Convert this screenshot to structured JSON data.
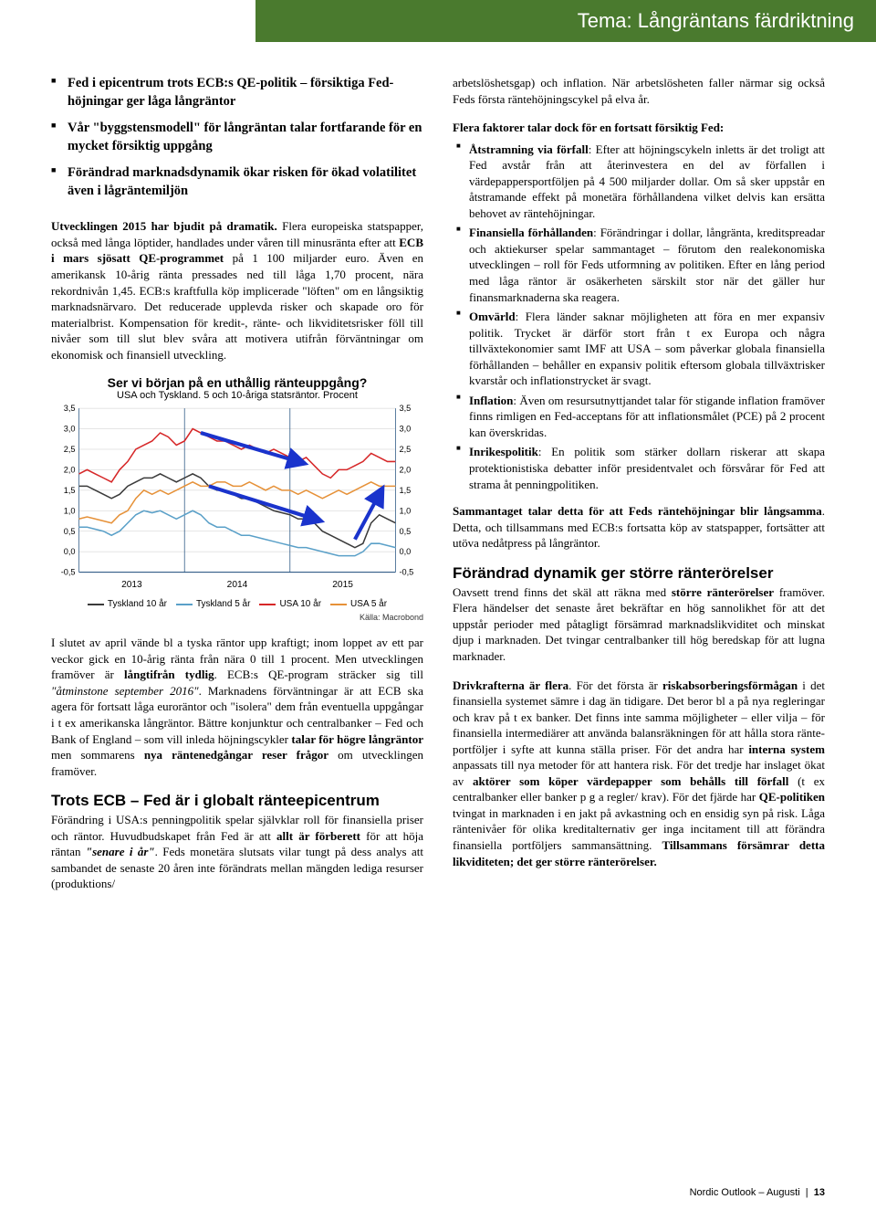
{
  "banner": {
    "title": "Tema: Långräntans färdriktning"
  },
  "intro_bullets": [
    "Fed i epicentrum trots ECB:s QE-politik – försiktiga Fed-höjningar ger låga långräntor",
    "Vår \"byggstensmodell\" för långräntan talar fortfarande för en mycket försiktig uppgång",
    "Förändrad marknadsdynamik ökar risken för ökad volatilitet även i lågräntemiljön"
  ],
  "left": {
    "p1_a": "Utvecklingen 2015 har bjudit på dramatik.",
    "p1_b": " Flera europeiska statspapper, också med långa löptider, handlades under våren till minusränta efter att ",
    "p1_c": "ECB i mars sjösatt QE-programmet",
    "p1_d": " på 1 100 miljarder euro. Även en amerikansk 10-årig ränta pres­sades ned till låga 1,70 procent, nära rekordnivån 1,45. ECB:s kraftfulla köp implicerade \"löften\" om en långsiktig marknads­närvaro. Det reducerade upplevda risker och skapade oro för materialbrist. Kompensation för kredit-, ränte- och likviditets­risker föll till nivåer som till slut blev svåra att motivera utifrån förväntningar om ekonomisk och finansiell utveckling.",
    "p2_a": "I slutet av april vände bl a tyska räntor upp kraftigt; inom loppet av ett par veckor gick en 10-årig ränta från nära 0 till 1 procent. Men utvecklingen framöver är ",
    "p2_b": "långtifrån tydlig",
    "p2_c": ". ECB:s QE-pro­gram sträcker sig till ",
    "p2_d": "\"åtminstone september 2016\"",
    "p2_e": ". Marknadens förväntningar är att ECB ska agera för fortsatt låga euroräntor och \"isolera\" dem från eventuella uppgångar i t ex amerikanska långräntor. Bättre konjunktur och centralbanker – Fed och Bank of England – som vill inleda höjningscykler ",
    "p2_f": "talar för hö­gre långräntor",
    "p2_g": " men sommarens ",
    "p2_h": "nya räntenedgångar reser frågor",
    "p2_i": " om utvecklingen framöver.",
    "h1": "Trots ECB – Fed är i globalt ränteepicentrum",
    "p3_a": "Förändring i USA:s penningpolitik spelar självklar roll för finan­siella priser och räntor. Huvudbudskapet från Fed är att ",
    "p3_b": "allt är förberett",
    "p3_c": " för att höja räntan ",
    "p3_d": "\"senare i år\"",
    "p3_e": ". Feds monetära slut­sats vilar tungt på dess analys att sambandet de senaste 20 åren inte förändrats mellan mängden lediga resurser (produktions/"
  },
  "right": {
    "p0": "arbetslöshetsgap) och inflation. När arbetslösheten faller när­mar sig också Feds första räntehöjningscykel på elva år.",
    "factor_head": "Flera faktorer talar dock för en fortsatt försiktig Fed:",
    "factors": [
      {
        "label": "Åtstramning via förfall",
        "text": ": Efter att höjningscykeln inletts är det troligt att Fed avstår från att återinvestera en del av för­fallen i värdepappersportföljen på 4 500 miljarder dollar. Om så sker uppstår en åtstramande effekt på monetära förhållandena vilket delvis kan ersätta behovet av räntehöjningar."
      },
      {
        "label": "Finansiella förhållanden",
        "text": ": Förändringar i dollar, långränta, kreditspreadar och aktiekurser spelar sammantaget – förutom den realekonomiska utvecklingen – roll för Feds utformning av politiken. Efter en lång period med låga räntor är osäkerheten särskilt stor när det gäller hur finansmarknaderna ska reagera."
      },
      {
        "label": "Omvärld",
        "text": ": Flera länder saknar möjligheten att föra en mer expansiv politik. Trycket är därför stort från t ex Europa och några tillväxtekonomier samt IMF att USA – som påverkar globala finansiella förhållanden – behåller en expansiv po­litik eftersom globala tillväxtrisker kvarstår och inflations­trycket är svagt."
      },
      {
        "label": "Inflation",
        "text": ": Även om resursutnyttjandet talar för stigande inflation framöver finns rimligen en Fed-acceptans för att inflationsmålet (PCE) på 2 procent kan överskridas."
      },
      {
        "label": "Inrikespolitik",
        "text": ": En politik som stärker dollarn riskerar att skapa protektionistiska debatter inför presidentvalet och försvårar för Fed att strama åt penningpolitiken."
      }
    ],
    "p1_a": "Sammantaget talar detta för att Feds räntehöjningar blir långsamma",
    "p1_b": ". Detta, och tillsammans med ECB:s fortsatta köp av statspapper, fortsätter att utöva nedåtpress på långräntor.",
    "h2": "Förändrad dynamik ger större ränterörelser",
    "p2_a": "Oavsett trend finns det skäl att räkna med ",
    "p2_b": "större ränterörel­ser",
    "p2_c": " framöver. Flera händelser det senaste året bekräftar en hög sannolikhet för att det uppstår perioder med påtagligt försäm­rad marknadslikviditet och minskat djup i marknaden. Det tvin­gar centralbanker till hög beredskap för att lugna marknader.",
    "p3_a": "Drivkrafterna är flera",
    "p3_b": ". För det första är ",
    "p3_c": "riskabsorberingsför­mågan",
    "p3_d": " i det finansiella systemet sämre i dag än tidigare. Det beror bl a på nya regleringar och krav på t ex banker. Det finns inte samma möjligheter – eller vilja – för finansiella interme­diärer att använda balansräkningen för att hålla stora ränte­portföljer i syfte att kunna ställa priser. För det andra har ",
    "p3_e": "inter­na system",
    "p3_f": " anpassats till nya metoder för att hantera risk. För det tredje har inslaget ökat av ",
    "p3_g": "aktörer som köper värdepap­per som behålls till förfall",
    "p3_h": " (t ex centralbanker eller banker p g a regler/ krav). För det fjärde har ",
    "p3_i": "QE-politiken",
    "p3_j": " tvingat in mark­naden i en jakt på avkastning och en ensidig syn på risk. Låga räntenivåer för olika kreditalternativ ger inga incitament till att förändra finansiella portföljers sammansättning. ",
    "p3_k": "Tillsammans försämrar detta likviditeten; det ger större ränterörelser."
  },
  "chart": {
    "title": "Ser vi början på en uthållig ränteuppgång?",
    "subtitle": "USA och Tyskland. 5 och 10-åriga statsräntor. Procent",
    "source": "Källa: Macrobond",
    "ylim": [
      -0.5,
      3.5
    ],
    "yticks": [
      "3,5",
      "3,0",
      "2,5",
      "2,0",
      "1,5",
      "1,0",
      "0,5",
      "0,0",
      "-0,5"
    ],
    "xlabels": [
      "2013",
      "2014",
      "2015"
    ],
    "background": "#ffffff",
    "grid_color": "#cccccc",
    "axis_color": "#1a4a7a",
    "arrow_color": "#1a33cc",
    "legend": [
      {
        "label": "Tyskland 10 år",
        "color": "#3a3a3a"
      },
      {
        "label": "Tyskland 5 år",
        "color": "#5aa0c8"
      },
      {
        "label": "USA 10 år",
        "color": "#d62728"
      },
      {
        "label": "USA 5 år",
        "color": "#e69138"
      }
    ],
    "series": {
      "usa10": {
        "color": "#d62728",
        "y": [
          1.9,
          2.0,
          1.9,
          1.8,
          1.7,
          2.0,
          2.2,
          2.5,
          2.6,
          2.7,
          2.9,
          2.8,
          2.6,
          2.7,
          3.0,
          2.9,
          2.8,
          2.7,
          2.7,
          2.6,
          2.5,
          2.6,
          2.5,
          2.4,
          2.5,
          2.4,
          2.3,
          2.2,
          2.3,
          2.1,
          1.9,
          1.8,
          2.0,
          2.0,
          2.1,
          2.2,
          2.4,
          2.3,
          2.2,
          2.2
        ]
      },
      "usa5": {
        "color": "#e69138",
        "y": [
          0.8,
          0.85,
          0.8,
          0.75,
          0.7,
          0.9,
          1.0,
          1.3,
          1.5,
          1.4,
          1.5,
          1.4,
          1.5,
          1.6,
          1.7,
          1.6,
          1.6,
          1.7,
          1.7,
          1.6,
          1.6,
          1.7,
          1.6,
          1.5,
          1.6,
          1.5,
          1.5,
          1.4,
          1.5,
          1.4,
          1.3,
          1.4,
          1.5,
          1.4,
          1.5,
          1.6,
          1.7,
          1.6,
          1.6,
          1.6
        ]
      },
      "ger10": {
        "color": "#3a3a3a",
        "y": [
          1.6,
          1.6,
          1.5,
          1.4,
          1.3,
          1.4,
          1.6,
          1.7,
          1.8,
          1.8,
          1.9,
          1.8,
          1.7,
          1.8,
          1.9,
          1.8,
          1.6,
          1.5,
          1.5,
          1.4,
          1.3,
          1.3,
          1.2,
          1.1,
          1.0,
          0.95,
          0.9,
          0.8,
          0.8,
          0.7,
          0.5,
          0.4,
          0.3,
          0.2,
          0.1,
          0.2,
          0.7,
          0.9,
          0.8,
          0.7
        ]
      },
      "ger5": {
        "color": "#5aa0c8",
        "y": [
          0.6,
          0.6,
          0.55,
          0.5,
          0.4,
          0.5,
          0.7,
          0.9,
          1.0,
          0.95,
          1.0,
          0.9,
          0.8,
          0.9,
          1.0,
          0.9,
          0.7,
          0.6,
          0.6,
          0.5,
          0.4,
          0.4,
          0.35,
          0.3,
          0.25,
          0.2,
          0.15,
          0.1,
          0.1,
          0.05,
          0.0,
          -0.05,
          -0.1,
          -0.1,
          -0.1,
          0.0,
          0.2,
          0.2,
          0.15,
          0.1
        ]
      }
    }
  },
  "footer": {
    "pub": "Nordic Outlook – Augusti",
    "page": "13"
  }
}
